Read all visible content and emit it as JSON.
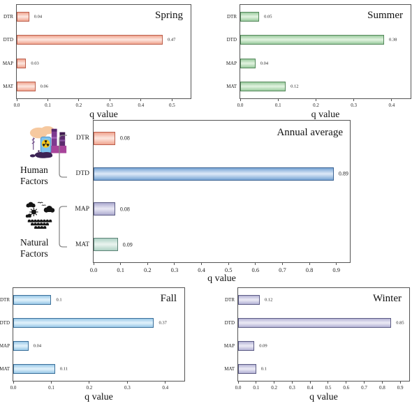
{
  "figure": {
    "background": "#ffffff",
    "frame_color": "#545454",
    "xlabel": "q value"
  },
  "side_panel": {
    "human": {
      "icon": "nuclear-plant-icon",
      "label": "Human\nFactors",
      "items": [
        "DTR",
        "DTD"
      ]
    },
    "natural": {
      "icon": "weather-icon",
      "label": "Natural\nFactors",
      "items": [
        "MAP",
        "MAT"
      ]
    }
  },
  "chart_data": [
    {
      "id": "spring",
      "type": "bar",
      "orientation": "horizontal",
      "title": "Spring",
      "categories": [
        "DTR",
        "DTD",
        "MAP",
        "MAT"
      ],
      "values": [
        0.04,
        0.47,
        0.03,
        0.06
      ],
      "value_labels": [
        "0.04",
        "0.47",
        "0.03",
        "0.06"
      ],
      "xlabel": "q value",
      "xlim": [
        0,
        0.56
      ],
      "xticks": [
        "0.0",
        "0.1",
        "0.2",
        "0.3",
        "0.4",
        "0.5"
      ],
      "grid": false,
      "legend": false,
      "bar_style": {
        "border": "#bb5f4c",
        "edge": "#f0a48f",
        "center": "#fce3db"
      }
    },
    {
      "id": "summer",
      "type": "bar",
      "orientation": "horizontal",
      "title": "Summer",
      "categories": [
        "DTR",
        "DTD",
        "MAP",
        "MAT"
      ],
      "values": [
        0.05,
        0.38,
        0.04,
        0.12
      ],
      "value_labels": [
        "0.05",
        "0.38",
        "0.04",
        "0.12"
      ],
      "xlabel": "q value",
      "xlim": [
        0,
        0.45
      ],
      "xticks": [
        "0.0",
        "0.1",
        "0.2",
        "0.3",
        "0.4"
      ],
      "grid": false,
      "legend": false,
      "bar_style": {
        "border": "#55885b",
        "edge": "#9acb9e",
        "center": "#def1dd"
      }
    },
    {
      "id": "annual",
      "type": "bar",
      "orientation": "horizontal",
      "title": "Annual average",
      "categories": [
        "DTR",
        "DTD",
        "MAP",
        "MAT"
      ],
      "values": [
        0.08,
        0.89,
        0.08,
        0.09
      ],
      "value_labels": [
        "0.08",
        "0.89",
        "0.08",
        "0.09"
      ],
      "xlabel": "q value",
      "xlim": [
        0,
        0.95
      ],
      "xticks": [
        "0.0",
        "0.1",
        "0.2",
        "0.3",
        "0.4",
        "0.5",
        "0.6",
        "0.7",
        "0.8",
        "0.9"
      ],
      "grid": false,
      "legend": false,
      "bar_styles": [
        {
          "border": "#bb5f4c",
          "edge": "#f0a48f",
          "center": "#fce3db"
        },
        {
          "border": "#3c6393",
          "edge": "#76a3d4",
          "center": "#d8e6f6"
        },
        {
          "border": "#5b5b84",
          "edge": "#adabd0",
          "center": "#e6e5f2"
        },
        {
          "border": "#5d8377",
          "edge": "#aed2c5",
          "center": "#e7f2ed"
        }
      ]
    },
    {
      "id": "fall",
      "type": "bar",
      "orientation": "horizontal",
      "title": "Fall",
      "categories": [
        "DTR",
        "DTD",
        "MAP",
        "MAT"
      ],
      "values": [
        0.1,
        0.37,
        0.04,
        0.11
      ],
      "value_labels": [
        "0.1",
        "0.37",
        "0.04",
        "0.11"
      ],
      "xlabel": "q value",
      "xlim": [
        0,
        0.45
      ],
      "xticks": [
        "0.0",
        "0.1",
        "0.2",
        "0.3",
        "0.4"
      ],
      "grid": false,
      "legend": false,
      "bar_style": {
        "border": "#3a6f99",
        "edge": "#9ac9e8",
        "center": "#def0fa"
      }
    },
    {
      "id": "winter",
      "type": "bar",
      "orientation": "horizontal",
      "title": "Winter",
      "categories": [
        "DTR",
        "DTD",
        "MAP",
        "MAT"
      ],
      "values": [
        0.12,
        0.85,
        0.09,
        0.1
      ],
      "value_labels": [
        "0.12",
        "0.85",
        "0.09",
        "0.1"
      ],
      "xlabel": "q value",
      "xlim": [
        0,
        0.95
      ],
      "xticks": [
        "0.0",
        "0.1",
        "0.2",
        "0.3",
        "0.4",
        "0.5",
        "0.6",
        "0.7",
        "0.8",
        "0.9"
      ],
      "grid": false,
      "legend": false,
      "bar_style": {
        "border": "#5b5b84",
        "edge": "#b5b3d6",
        "center": "#e9e8f4"
      }
    }
  ]
}
